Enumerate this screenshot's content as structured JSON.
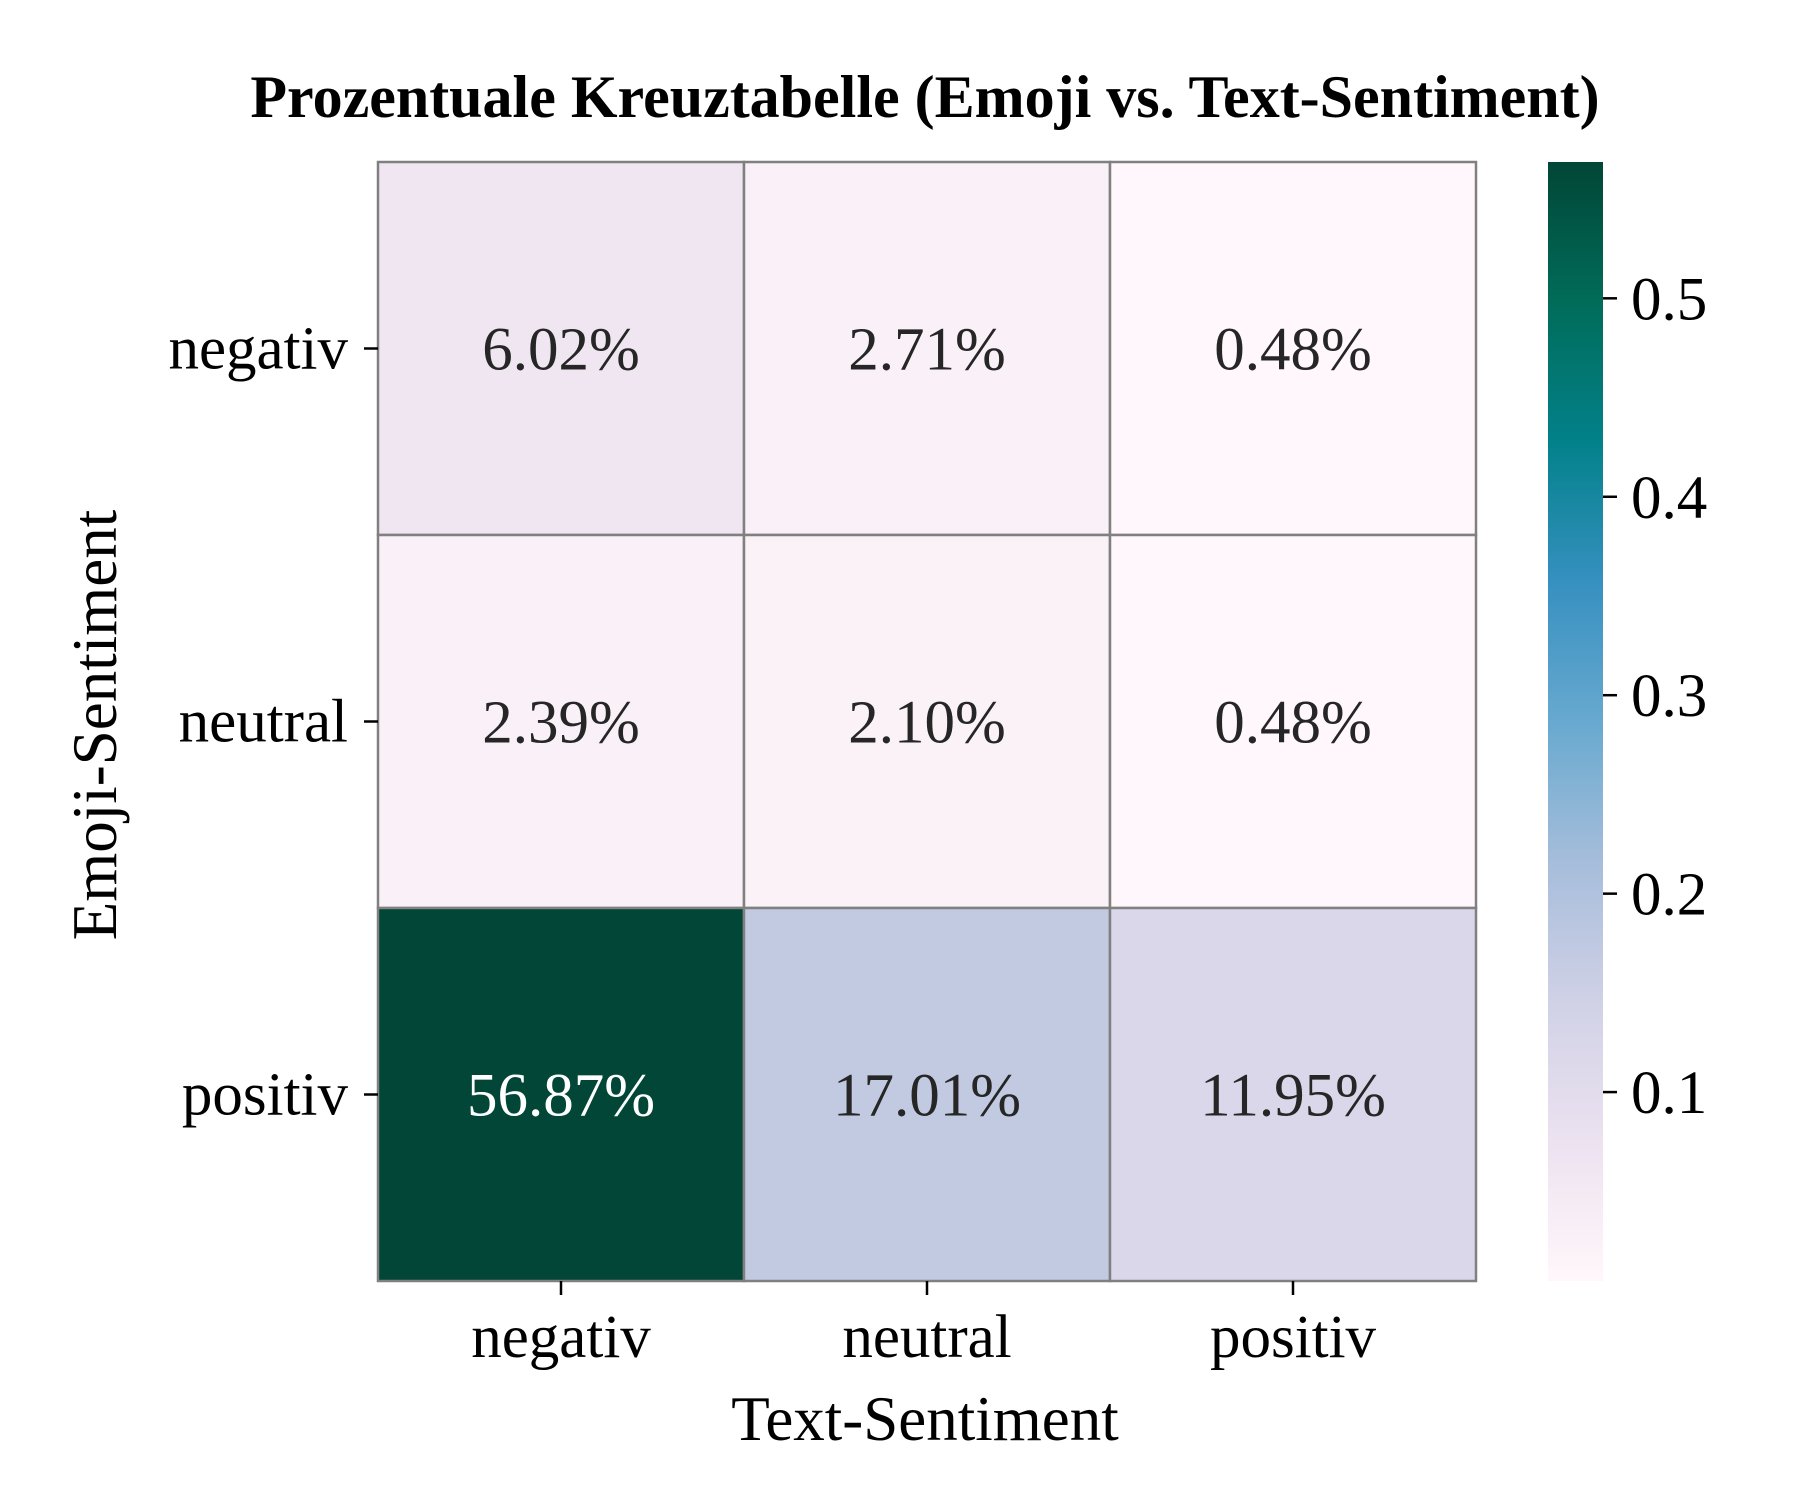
{
  "chart_data": {
    "type": "heatmap",
    "title": "Prozentuale Kreuztabelle (Emoji vs. Text-Sentiment)",
    "xlabel": "Text-Sentiment",
    "ylabel": "Emoji-Sentiment",
    "x_categories": [
      "negativ",
      "neutral",
      "positiv"
    ],
    "y_categories": [
      "negativ",
      "neutral",
      "positiv"
    ],
    "values": [
      [
        0.0602,
        0.0271,
        0.0048
      ],
      [
        0.0239,
        0.021,
        0.0048
      ],
      [
        0.5687,
        0.1701,
        0.1195
      ]
    ],
    "cell_labels": [
      [
        "6.02%",
        "2.71%",
        "0.48%"
      ],
      [
        "2.39%",
        "2.10%",
        "0.48%"
      ],
      [
        "56.87%",
        "17.01%",
        "11.95%"
      ]
    ],
    "colorbar": {
      "range": [
        0.0048,
        0.5687
      ],
      "ticks": [
        0.1,
        0.2,
        0.3,
        0.4,
        0.5
      ],
      "tick_labels": [
        "0.1",
        "0.2",
        "0.3",
        "0.4",
        "0.5"
      ],
      "colormap": "PuBuGn",
      "colormap_stops": [
        "#fff7fb",
        "#ece2f0",
        "#d0d1e6",
        "#a6bddb",
        "#67a9cf",
        "#3690c0",
        "#02818a",
        "#016c59",
        "#014636"
      ]
    },
    "grid_line_color": "#808080",
    "text_color_dark": "#262626",
    "text_color_light": "#ffffff"
  }
}
